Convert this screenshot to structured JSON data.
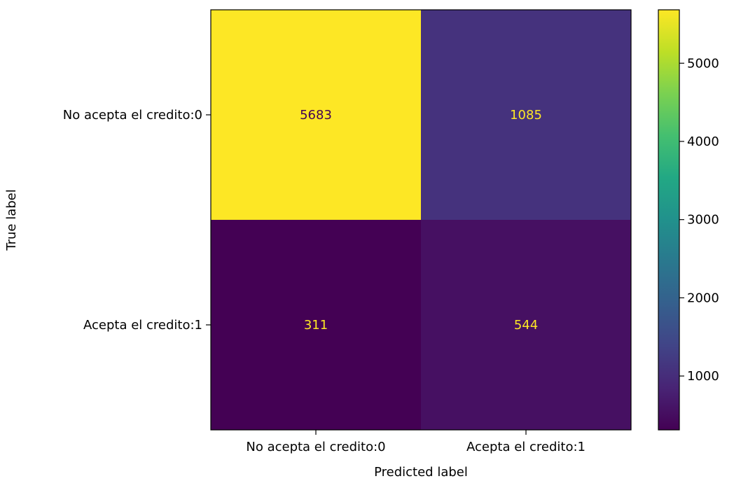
{
  "chart_data": {
    "type": "heatmap",
    "title": "",
    "xlabel": "Predicted label",
    "ylabel": "True label",
    "x_categories": [
      "No acepta el credito:0",
      "Acepta el credito:1"
    ],
    "y_categories": [
      "No acepta el credito:0",
      "Acepta el credito:1"
    ],
    "values": [
      [
        5683,
        1085
      ],
      [
        311,
        544
      ]
    ],
    "colormap": "viridis",
    "colorbar": {
      "range": [
        311,
        5683
      ],
      "ticks": [
        1000,
        2000,
        3000,
        4000,
        5000
      ],
      "tick_labels": [
        "1000",
        "2000",
        "3000",
        "4000",
        "5000"
      ]
    },
    "text_color_light": "#fde725",
    "text_color_dark": "#440154",
    "grid": false
  }
}
